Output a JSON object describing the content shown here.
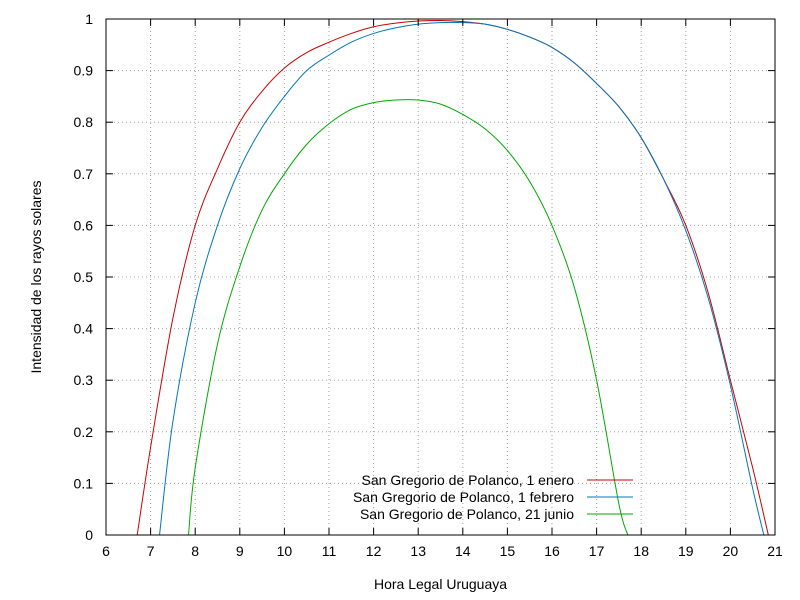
{
  "chart_data": {
    "type": "line",
    "title": "",
    "xlabel": "Hora Legal Uruguaya",
    "ylabel": "Intensidad de los rayos solares",
    "xlim": [
      6,
      21
    ],
    "ylim": [
      0,
      1
    ],
    "xticks": [
      6,
      7,
      8,
      9,
      10,
      11,
      12,
      13,
      14,
      15,
      16,
      17,
      18,
      19,
      20,
      21
    ],
    "yticks": [
      0,
      0.1,
      0.2,
      0.3,
      0.4,
      0.5,
      0.6,
      0.7,
      0.8,
      0.9,
      1
    ],
    "ytick_labels": [
      "0",
      "0.1",
      "0.2",
      "0.3",
      "0.4",
      "0.5",
      "0.6",
      "0.7",
      "0.8",
      "0.9",
      "1"
    ],
    "grid": true,
    "legend_position": "bottom-right",
    "series": [
      {
        "name": "San Gregorio de Polanco, 1 enero",
        "color": "#cc0000",
        "x": [
          6.7,
          7.0,
          7.5,
          8.0,
          8.5,
          9.0,
          9.5,
          10.0,
          10.5,
          11.0,
          11.5,
          12.0,
          12.5,
          13.0,
          13.5,
          14.0,
          14.5,
          15.0,
          15.5,
          16.0,
          16.5,
          17.0,
          17.5,
          18.0,
          18.5,
          19.0,
          19.5,
          20.0,
          20.5,
          20.85
        ],
        "y": [
          0.0,
          0.17,
          0.42,
          0.6,
          0.71,
          0.8,
          0.86,
          0.905,
          0.935,
          0.955,
          0.972,
          0.985,
          0.992,
          0.996,
          0.997,
          0.995,
          0.99,
          0.98,
          0.965,
          0.945,
          0.915,
          0.875,
          0.83,
          0.77,
          0.69,
          0.6,
          0.47,
          0.3,
          0.13,
          0.0
        ]
      },
      {
        "name": "San Gregorio de Polanco, 1 febrero",
        "color": "#0077bb",
        "x": [
          7.2,
          7.5,
          8.0,
          8.5,
          9.0,
          9.5,
          10.0,
          10.5,
          11.0,
          11.5,
          12.0,
          12.5,
          13.0,
          13.5,
          14.0,
          14.5,
          15.0,
          15.5,
          16.0,
          16.5,
          17.0,
          17.5,
          18.0,
          18.5,
          19.0,
          19.5,
          20.0,
          20.5,
          20.75
        ],
        "y": [
          0.0,
          0.22,
          0.45,
          0.6,
          0.71,
          0.79,
          0.85,
          0.9,
          0.93,
          0.955,
          0.972,
          0.983,
          0.99,
          0.993,
          0.993,
          0.99,
          0.98,
          0.965,
          0.945,
          0.915,
          0.875,
          0.83,
          0.77,
          0.69,
          0.59,
          0.46,
          0.29,
          0.09,
          0.0
        ]
      },
      {
        "name": "San Gregorio de Polanco, 21 junio",
        "color": "#00aa00",
        "x": [
          7.85,
          8.0,
          8.5,
          9.0,
          9.5,
          10.0,
          10.5,
          11.0,
          11.5,
          12.0,
          12.5,
          13.0,
          13.5,
          14.0,
          14.5,
          15.0,
          15.5,
          16.0,
          16.5,
          17.0,
          17.5,
          17.7
        ],
        "y": [
          0.0,
          0.13,
          0.37,
          0.52,
          0.63,
          0.7,
          0.757,
          0.797,
          0.825,
          0.838,
          0.843,
          0.843,
          0.835,
          0.815,
          0.787,
          0.745,
          0.685,
          0.6,
          0.48,
          0.3,
          0.06,
          0.0
        ]
      }
    ]
  }
}
